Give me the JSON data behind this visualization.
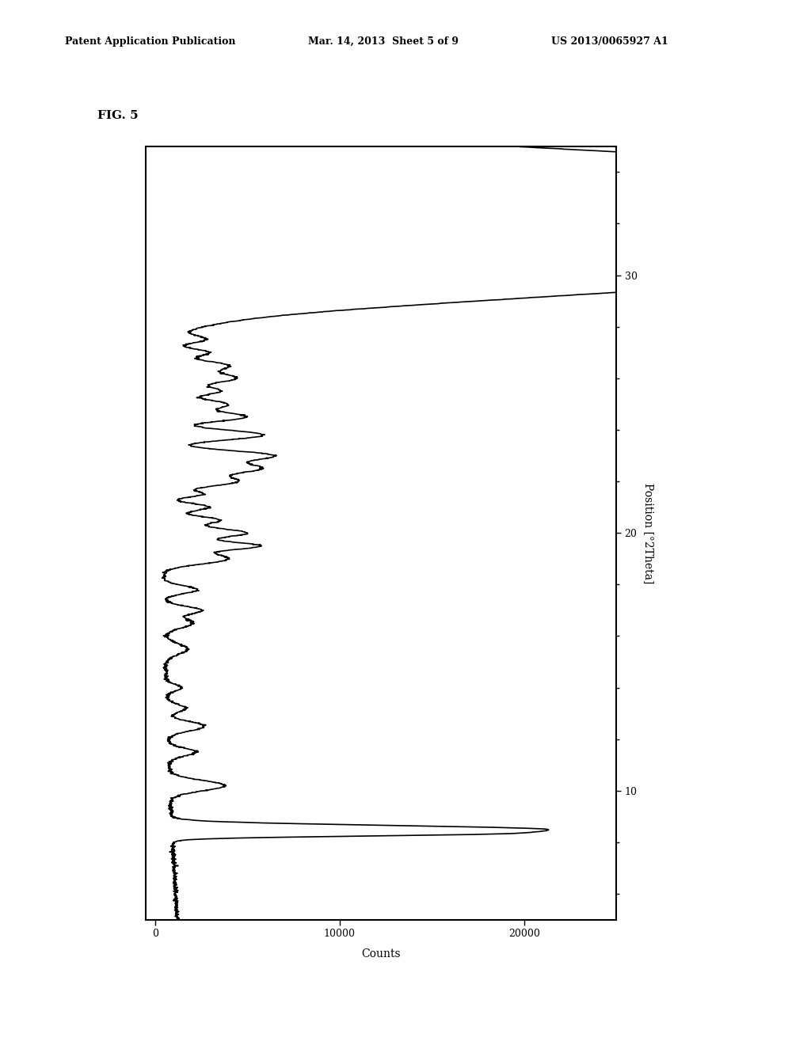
{
  "header_left": "Patent Application Publication",
  "header_mid": "Mar. 14, 2013  Sheet 5 of 9",
  "header_right": "US 2013/0065927 A1",
  "fig_label": "FIG. 5",
  "xlabel": "Counts",
  "ylabel": "Position [°2Theta]",
  "x_ticks": [
    0,
    10000,
    20000
  ],
  "y_ticks": [
    10,
    20,
    30
  ],
  "ylim": [
    5,
    35
  ],
  "xlim": [
    -500,
    25000
  ],
  "background_color": "#ffffff",
  "line_color": "#000000",
  "line_width": 1.2
}
